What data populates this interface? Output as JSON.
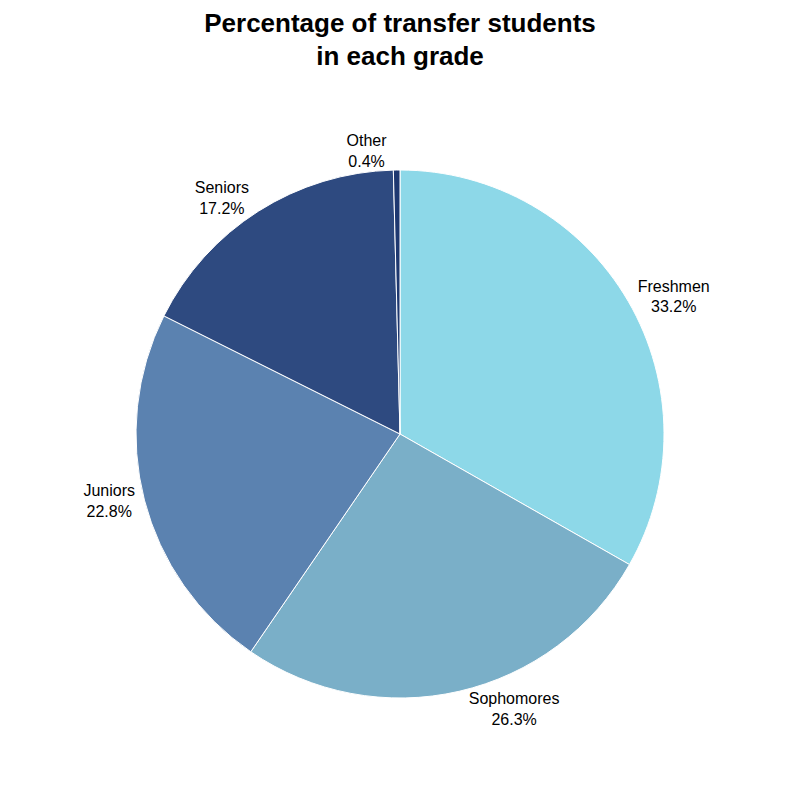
{
  "chart_data": {
    "type": "pie",
    "title": "Percentage of transfer students\nin each grade",
    "categories": [
      "Freshmen",
      "Sophomores",
      "Juniors",
      "Seniors",
      "Other"
    ],
    "values": [
      33.2,
      26.3,
      22.8,
      17.2,
      0.4
    ],
    "value_labels": [
      "33.2%",
      "26.3%",
      "22.8%",
      "17.2%",
      "0.4%"
    ],
    "colors": [
      "#8DD8E8",
      "#7AAFC8",
      "#5B82B0",
      "#2E4A80",
      "#1E3870"
    ],
    "data_labels": true
  }
}
